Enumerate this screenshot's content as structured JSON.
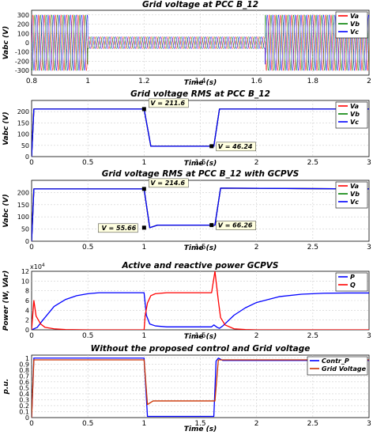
{
  "chart_data": [
    {
      "type": "line",
      "title": "Grid voltage at PCC B_12",
      "xlabel": "Time (s)",
      "ylabel": "Vabc (V)",
      "xlim": [
        0.8,
        2
      ],
      "ylim": [
        -350,
        350
      ],
      "xticks": [
        "0.8",
        "1",
        "1.2",
        "1.4",
        "1.6",
        "1.8",
        "2"
      ],
      "yticks": [
        "300",
        "200",
        "100",
        "0",
        "-100",
        "-200",
        "-300"
      ],
      "grid": true,
      "legend": "top-right",
      "waveform": {
        "frequency_hz": 50,
        "amplitude_normal": 300,
        "amplitude_sag": 65,
        "sag_start": 1.0,
        "sag_end": 1.63
      },
      "series": [
        {
          "name": "Va",
          "color": "#ff0000",
          "phase_deg": 0
        },
        {
          "name": "Vb",
          "color": "#008000",
          "phase_deg": -120
        },
        {
          "name": "Vc",
          "color": "#0000ff",
          "phase_deg": 120
        }
      ]
    },
    {
      "type": "line",
      "title": "Grid voltage RMS at PCC B_12",
      "xlabel": "Time (s)",
      "ylabel": "Vabc (V)",
      "xlim": [
        0,
        3
      ],
      "ylim": [
        0,
        250
      ],
      "xticks": [
        "0",
        "0.5",
        "1",
        "1.5",
        "2",
        "2.5",
        "3"
      ],
      "yticks": [
        "200",
        "150",
        "100",
        "50",
        "0"
      ],
      "grid": true,
      "legend": "top-right",
      "series": [
        {
          "name": "Va",
          "color": "#ff0000",
          "x": [
            0,
            0.02,
            1.0,
            1.06,
            1.62,
            1.67,
            3
          ],
          "y": [
            0,
            211.6,
            211.6,
            46.24,
            46.24,
            211.6,
            211.6
          ]
        },
        {
          "name": "Vb",
          "color": "#008000",
          "x": [
            0,
            0.02,
            1.0,
            1.06,
            1.62,
            1.67,
            3
          ],
          "y": [
            0,
            211.6,
            211.6,
            46.24,
            46.24,
            211.6,
            211.6
          ]
        },
        {
          "name": "Vc",
          "color": "#0000ff",
          "x": [
            0,
            0.02,
            1.0,
            1.06,
            1.62,
            1.67,
            3
          ],
          "y": [
            0,
            211.6,
            211.6,
            46.24,
            46.24,
            211.6,
            211.6
          ]
        }
      ],
      "annotations": [
        {
          "text": "V = 211.6",
          "x": 1.0,
          "y": 211.6
        },
        {
          "text": "V = 46.24",
          "x": 1.6,
          "y": 46.24
        }
      ]
    },
    {
      "type": "line",
      "title": "Grid voltage RMS at PCC B_12 with GCPVS",
      "xlabel": "Time (s)",
      "ylabel": "Vabc (V)",
      "xlim": [
        0,
        3
      ],
      "ylim": [
        0,
        250
      ],
      "xticks": [
        "0",
        "0.5",
        "1",
        "1.5",
        "2",
        "2.5",
        "3"
      ],
      "yticks": [
        "200",
        "150",
        "100",
        "50",
        "0"
      ],
      "grid": true,
      "legend": "top-right",
      "series": [
        {
          "name": "Va",
          "color": "#ff0000",
          "x": [
            0,
            0.02,
            1.0,
            1.05,
            1.12,
            1.6,
            1.63,
            1.68,
            3
          ],
          "y": [
            0,
            214.6,
            214.6,
            55.66,
            66.26,
            66.26,
            66.26,
            218,
            214.6
          ]
        },
        {
          "name": "Vb",
          "color": "#008000",
          "x": [
            0,
            0.02,
            1.0,
            1.05,
            1.12,
            1.6,
            1.63,
            1.68,
            3
          ],
          "y": [
            0,
            214.6,
            214.6,
            55.66,
            66.26,
            66.26,
            66.26,
            218,
            214.6
          ]
        },
        {
          "name": "Vc",
          "color": "#0000ff",
          "x": [
            0,
            0.02,
            1.0,
            1.05,
            1.12,
            1.6,
            1.63,
            1.68,
            3
          ],
          "y": [
            0,
            214.6,
            214.6,
            55.66,
            66.26,
            66.26,
            66.26,
            218,
            214.6
          ]
        }
      ],
      "annotations": [
        {
          "text": "V = 214.6",
          "x": 1.0,
          "y": 214.6
        },
        {
          "text": "V = 55.66",
          "x": 1.0,
          "y": 55.66
        },
        {
          "text": "V = 66.26",
          "x": 1.6,
          "y": 66.26
        }
      ]
    },
    {
      "type": "line",
      "title": "Active and reactive power GCPVS",
      "xlabel": "Time (s)",
      "ylabel": "Power (W, VAr)",
      "xlim": [
        0,
        3
      ],
      "ylim": [
        0,
        120000
      ],
      "yaxis_multiplier": "x10^4",
      "xticks": [
        "0",
        "0.5",
        "1",
        "1.5",
        "2",
        "2.5",
        "3"
      ],
      "yticks": [
        "12",
        "10",
        "8",
        "6",
        "4",
        "2",
        "0"
      ],
      "grid": true,
      "legend": "top-right",
      "series": [
        {
          "name": "P",
          "color": "#0000ff",
          "x": [
            0,
            0.05,
            0.1,
            0.2,
            0.3,
            0.4,
            0.5,
            0.6,
            0.8,
            1.0,
            1.02,
            1.05,
            1.1,
            1.2,
            1.4,
            1.6,
            1.62,
            1.65,
            1.67,
            1.7,
            1.8,
            1.9,
            2.0,
            2.2,
            2.4,
            2.6,
            2.8,
            3.0
          ],
          "y": [
            0,
            5000,
            20000,
            48000,
            62000,
            70000,
            74000,
            76000,
            76000,
            76000,
            30000,
            12000,
            8000,
            6000,
            6000,
            6000,
            10000,
            5000,
            3000,
            8000,
            30000,
            45000,
            56000,
            68000,
            73000,
            75000,
            75500,
            75500
          ]
        },
        {
          "name": "Q",
          "color": "#ff0000",
          "x": [
            0,
            0.02,
            0.04,
            0.08,
            0.12,
            0.2,
            0.3,
            0.5,
            1.0,
            1.01,
            1.03,
            1.06,
            1.1,
            1.2,
            1.4,
            1.6,
            1.63,
            1.66,
            1.68,
            1.72,
            1.8,
            1.9,
            2.0,
            2.5,
            3.0
          ],
          "y": [
            0,
            60000,
            28000,
            12000,
            5000,
            2000,
            500,
            0,
            0,
            30000,
            55000,
            70000,
            74000,
            76000,
            76000,
            76000,
            120000,
            60000,
            25000,
            10000,
            2000,
            500,
            0,
            0,
            0
          ]
        }
      ]
    },
    {
      "type": "line",
      "title": "Without the proposed control and Grid voltage",
      "xlabel": "Time (s)",
      "ylabel": "p.u.",
      "xlim": [
        0,
        3
      ],
      "ylim": [
        0,
        1.05
      ],
      "xticks": [
        "0",
        "0.5",
        "1",
        "1.5",
        "2",
        "2.5",
        "3"
      ],
      "yticks": [
        "1",
        "0.9",
        "0.8",
        "0.7",
        "0.6",
        "0.5",
        "0.4",
        "0.3",
        "0.2",
        "0.1",
        "0"
      ],
      "grid": true,
      "legend": "top-right",
      "series": [
        {
          "name": "Contr_P",
          "color": "#0000ff",
          "x": [
            0,
            0.02,
            1.0,
            1.03,
            1.6,
            1.62,
            1.64,
            1.66,
            1.7,
            3.0
          ],
          "y": [
            0,
            1.0,
            1.0,
            0.02,
            0.02,
            0.02,
            0.95,
            1.0,
            0.96,
            0.96
          ]
        },
        {
          "name": "Grid Voltage",
          "color": "#cc3300",
          "x": [
            0,
            0.02,
            1.0,
            1.03,
            1.08,
            1.6,
            1.63,
            1.66,
            3.0
          ],
          "y": [
            0,
            0.97,
            0.97,
            0.22,
            0.28,
            0.28,
            0.28,
            0.97,
            0.97
          ]
        }
      ]
    }
  ]
}
